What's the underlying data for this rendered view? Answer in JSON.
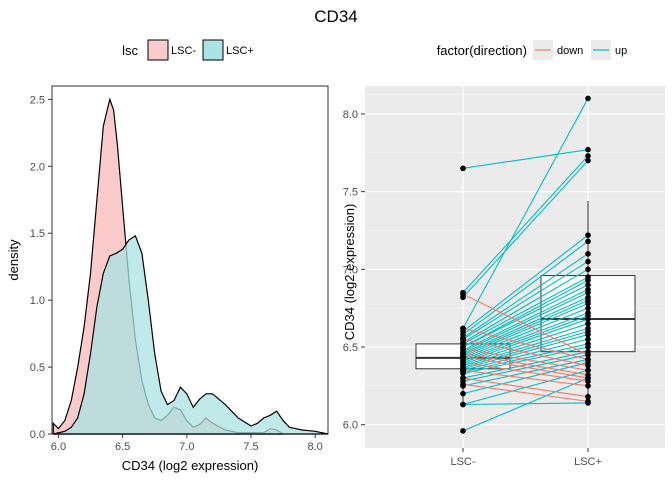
{
  "figure": {
    "title": "CD34"
  },
  "chart_data": [
    {
      "type": "area",
      "subtype": "density",
      "xlabel": "CD34 (log2 expression)",
      "ylabel": "density",
      "xlim": [
        5.95,
        8.1
      ],
      "ylim": [
        0,
        2.6
      ],
      "xticks": [
        6.0,
        6.5,
        7.0,
        7.5,
        8.0
      ],
      "yticks": [
        0.0,
        0.5,
        1.0,
        1.5,
        2.0,
        2.5
      ],
      "xtick_labels": [
        "6.0",
        "6.5",
        "7.0",
        "7.5",
        "8.0"
      ],
      "ytick_labels": [
        "0.0",
        "0.5",
        "1.0",
        "1.5",
        "2.0",
        "2.5"
      ],
      "grid": false,
      "legend": {
        "title": "lsc",
        "position": "top"
      },
      "series": [
        {
          "name": "LSC-",
          "color": "#F8766D",
          "fill": "#FBCBCB",
          "x": [
            5.96,
            5.98,
            6.0,
            6.05,
            6.1,
            6.15,
            6.2,
            6.25,
            6.3,
            6.35,
            6.4,
            6.43,
            6.46,
            6.5,
            6.55,
            6.6,
            6.65,
            6.7,
            6.75,
            6.8,
            6.85,
            6.9,
            6.95,
            7.0,
            7.05,
            7.1,
            7.15,
            7.2,
            7.3,
            7.4,
            7.5,
            7.6,
            7.65,
            7.7,
            7.75
          ],
          "y": [
            0.08,
            0.06,
            0.04,
            0.1,
            0.25,
            0.5,
            0.8,
            1.2,
            1.75,
            2.3,
            2.5,
            2.42,
            2.15,
            1.7,
            1.15,
            0.7,
            0.4,
            0.22,
            0.12,
            0.1,
            0.14,
            0.2,
            0.18,
            0.1,
            0.05,
            0.07,
            0.12,
            0.08,
            0.03,
            0.01,
            0.01,
            0.01,
            0.04,
            0.03,
            0.0
          ]
        },
        {
          "name": "LSC+",
          "color": "#00BFC4",
          "fill": "#ABE2E3",
          "x": [
            5.96,
            6.05,
            6.1,
            6.15,
            6.2,
            6.25,
            6.3,
            6.35,
            6.4,
            6.45,
            6.5,
            6.55,
            6.6,
            6.65,
            6.7,
            6.75,
            6.8,
            6.85,
            6.9,
            6.95,
            7.0,
            7.05,
            7.1,
            7.15,
            7.2,
            7.3,
            7.4,
            7.5,
            7.55,
            7.6,
            7.65,
            7.7,
            7.75,
            7.8,
            7.9,
            8.0,
            8.1
          ],
          "y": [
            0.0,
            0.02,
            0.05,
            0.12,
            0.3,
            0.6,
            0.95,
            1.2,
            1.33,
            1.35,
            1.38,
            1.45,
            1.48,
            1.35,
            1.0,
            0.6,
            0.32,
            0.22,
            0.25,
            0.35,
            0.3,
            0.2,
            0.26,
            0.3,
            0.3,
            0.22,
            0.12,
            0.06,
            0.08,
            0.12,
            0.14,
            0.17,
            0.1,
            0.05,
            0.03,
            0.02,
            0.0
          ]
        }
      ]
    },
    {
      "type": "box",
      "overlay": "paired-lines-with-points",
      "categories": [
        "LSC-",
        "LSC+"
      ],
      "xlabel": "",
      "ylabel": "CD34 (log2 expression)",
      "ylim": [
        5.85,
        8.18
      ],
      "yticks": [
        6.0,
        6.5,
        7.0,
        7.5,
        8.0
      ],
      "ytick_labels": [
        "6.0",
        "6.5",
        "7.0",
        "7.5",
        "8.0"
      ],
      "grid": true,
      "legend": {
        "title": "factor(direction)",
        "position": "top"
      },
      "direction_colors": {
        "down": "#F8766D",
        "up": "#00BFC4"
      },
      "boxes": [
        {
          "category": "LSC-",
          "q1": 6.36,
          "median": 6.43,
          "q3": 6.52,
          "whisker_low": 6.13,
          "whisker_high": 6.62
        },
        {
          "category": "LSC+",
          "q1": 6.47,
          "median": 6.68,
          "q3": 6.96,
          "whisker_low": 6.13,
          "whisker_high": 7.44
        }
      ],
      "pairs": [
        [
          7.65,
          7.77,
          "up"
        ],
        [
          6.85,
          7.73,
          "up"
        ],
        [
          6.82,
          7.7,
          "up"
        ],
        [
          6.62,
          8.1,
          "up"
        ],
        [
          6.6,
          7.22,
          "up"
        ],
        [
          6.58,
          7.18,
          "up"
        ],
        [
          6.56,
          7.1,
          "up"
        ],
        [
          6.55,
          7.05,
          "up"
        ],
        [
          6.53,
          7.0,
          "up"
        ],
        [
          6.52,
          6.95,
          "up"
        ],
        [
          6.5,
          6.93,
          "up"
        ],
        [
          6.5,
          6.9,
          "up"
        ],
        [
          6.48,
          6.87,
          "up"
        ],
        [
          6.47,
          6.85,
          "up"
        ],
        [
          6.46,
          6.82,
          "up"
        ],
        [
          6.45,
          6.8,
          "up"
        ],
        [
          6.44,
          6.78,
          "up"
        ],
        [
          6.43,
          6.75,
          "up"
        ],
        [
          6.42,
          6.72,
          "up"
        ],
        [
          6.41,
          6.7,
          "up"
        ],
        [
          6.4,
          6.68,
          "up"
        ],
        [
          6.39,
          6.65,
          "up"
        ],
        [
          6.38,
          6.62,
          "up"
        ],
        [
          6.37,
          6.6,
          "up"
        ],
        [
          6.36,
          6.58,
          "up"
        ],
        [
          6.35,
          6.55,
          "up"
        ],
        [
          6.34,
          6.52,
          "up"
        ],
        [
          6.33,
          6.5,
          "up"
        ],
        [
          6.3,
          6.47,
          "up"
        ],
        [
          6.28,
          6.45,
          "up"
        ],
        [
          6.25,
          6.42,
          "up"
        ],
        [
          6.2,
          6.4,
          "up"
        ],
        [
          6.13,
          6.35,
          "up"
        ],
        [
          5.96,
          6.3,
          "up"
        ],
        [
          6.13,
          6.14,
          "up"
        ],
        [
          6.84,
          6.45,
          "down"
        ],
        [
          6.62,
          6.42,
          "down"
        ],
        [
          6.55,
          6.38,
          "down"
        ],
        [
          6.49,
          6.35,
          "down"
        ],
        [
          6.46,
          6.32,
          "down"
        ],
        [
          6.44,
          6.3,
          "down"
        ],
        [
          6.4,
          6.28,
          "down"
        ],
        [
          6.35,
          6.25,
          "down"
        ],
        [
          6.3,
          6.18,
          "down"
        ],
        [
          6.26,
          6.15,
          "down"
        ]
      ]
    }
  ]
}
